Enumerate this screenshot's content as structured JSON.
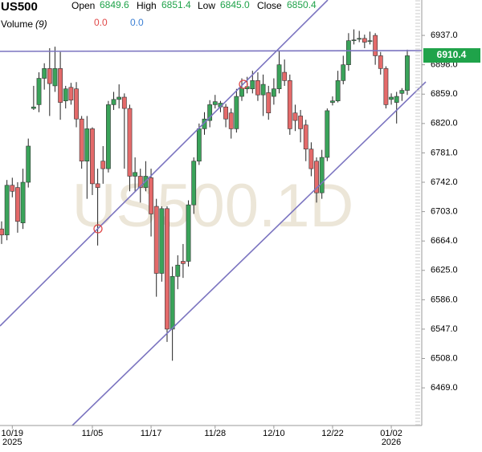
{
  "header": {
    "symbol": "US500",
    "open_label": "Open",
    "open": "6849.6",
    "high_label": "High",
    "high": "6851.4",
    "low_label": "Low",
    "low": "6845.0",
    "close_label": "Close",
    "close": "6850.4",
    "volume_label": "Volume",
    "volume_period": "(9)",
    "volume_a": "0.0",
    "volume_b": "0.0"
  },
  "chart_data": {
    "type": "candlestick",
    "watermark": "US500.1D",
    "up_color": "#3aa35a",
    "down_color": "#e46a6a",
    "categories": [
      null,
      null,
      "10/19",
      null,
      null,
      null,
      null,
      null,
      null,
      null,
      null,
      null,
      null,
      null,
      null,
      null,
      null,
      "11/05",
      null,
      null,
      null,
      null,
      null,
      null,
      null,
      null,
      null,
      null,
      "11/17",
      null,
      null,
      null,
      null,
      null,
      null,
      null,
      null,
      null,
      null,
      null,
      "11/28",
      null,
      null,
      null,
      null,
      null,
      null,
      null,
      null,
      null,
      null,
      "12/10",
      null,
      null,
      null,
      null,
      null,
      null,
      null,
      null,
      null,
      null,
      "12/22",
      null,
      null,
      null,
      null,
      null,
      null,
      null,
      null,
      null,
      null,
      "01/02",
      null,
      null,
      null
    ],
    "years": [
      null,
      null,
      "2025",
      null,
      null,
      null,
      null,
      null,
      null,
      null,
      null,
      null,
      null,
      null,
      null,
      null,
      null,
      null,
      null,
      null,
      null,
      null,
      null,
      null,
      null,
      null,
      null,
      null,
      null,
      null,
      null,
      null,
      null,
      null,
      null,
      null,
      null,
      null,
      null,
      null,
      null,
      null,
      null,
      null,
      null,
      null,
      null,
      null,
      null,
      null,
      null,
      null,
      null,
      null,
      null,
      null,
      null,
      null,
      null,
      null,
      null,
      null,
      null,
      null,
      null,
      null,
      null,
      null,
      null,
      null,
      null,
      null,
      null,
      "2026",
      null,
      null,
      null
    ],
    "open": [
      6680,
      6672,
      6738,
      6735,
      6688,
      6742,
      6840,
      6845,
      6880,
      6893,
      6870,
      6893,
      6850,
      6868,
      6866,
      6826,
      6770,
      6813,
      6740,
      6770,
      6760,
      6845,
      6852,
      6855,
      6840,
      6750,
      6750,
      6735,
      6748,
      6710,
      6621,
      6707,
      6547,
      6617,
      6637,
      6637,
      6712,
      6770,
      6813,
      6824,
      6845,
      6842,
      6842,
      6834,
      6813,
      6856,
      6866,
      6866,
      6877,
      6858,
      6861,
      6856,
      6866,
      6888,
      6877,
      6834,
      6830,
      6818,
      6786,
      6770,
      6728,
      6775,
      6848,
      6850,
      6877,
      6898,
      6930,
      6932,
      6933,
      6929,
      6937,
      6910,
      6893,
      6852,
      6848,
      6860,
      6864
    ],
    "high": [
      6690,
      6745,
      6748,
      6742,
      6760,
      6800,
      6870,
      6888,
      6900,
      6920,
      6922,
      6915,
      6870,
      6874,
      6875,
      6830,
      6830,
      6815,
      6760,
      6790,
      6850,
      6862,
      6872,
      6860,
      6845,
      6775,
      6760,
      6770,
      6760,
      6720,
      6710,
      6710,
      6630,
      6645,
      6660,
      6718,
      6775,
      6820,
      6835,
      6851,
      6858,
      6850,
      6846,
      6840,
      6866,
      6880,
      6882,
      6890,
      6888,
      6885,
      6870,
      6880,
      6916,
      6905,
      6885,
      6845,
      6838,
      6825,
      6795,
      6775,
      6785,
      6840,
      6856,
      6890,
      6910,
      6940,
      6945,
      6943,
      6938,
      6942,
      6940,
      6915,
      6896,
      6860,
      6862,
      6867,
      6918
    ],
    "low": [
      6660,
      6665,
      6722,
      6675,
      6680,
      6735,
      6838,
      6835,
      6865,
      6830,
      6862,
      6825,
      6840,
      6845,
      6815,
      6760,
      6720,
      6725,
      6658,
      6740,
      6755,
      6838,
      6840,
      6760,
      6730,
      6730,
      6715,
      6730,
      6670,
      6590,
      6610,
      6530,
      6505,
      6600,
      6615,
      6630,
      6700,
      6765,
      6805,
      6815,
      6840,
      6835,
      6815,
      6800,
      6808,
      6850,
      6860,
      6860,
      6850,
      6830,
      6825,
      6845,
      6860,
      6870,
      6805,
      6810,
      6795,
      6770,
      6750,
      6715,
      6720,
      6770,
      6844,
      6848,
      6872,
      6890,
      6925,
      6928,
      6920,
      6925,
      6898,
      6885,
      6840,
      6845,
      6820,
      6850,
      6858
    ],
    "close": [
      6672,
      6738,
      6730,
      6690,
      6742,
      6790,
      6842,
      6880,
      6893,
      6873,
      6893,
      6848,
      6866,
      6851,
      6826,
      6770,
      6813,
      6740,
      6735,
      6760,
      6845,
      6852,
      6855,
      6840,
      6750,
      6755,
      6735,
      6750,
      6700,
      6621,
      6707,
      6547,
      6617,
      6632,
      6634,
      6712,
      6770,
      6813,
      6826,
      6845,
      6849,
      6847,
      6826,
      6813,
      6856,
      6867,
      6869,
      6877,
      6858,
      6872,
      6834,
      6866,
      6898,
      6877,
      6813,
      6824,
      6813,
      6786,
      6760,
      6728,
      6775,
      6837,
      6850,
      6877,
      6898,
      6930,
      6931,
      6933,
      6928,
      6930,
      6910,
      6893,
      6845,
      6855,
      6856,
      6864,
      6910
    ],
    "ylim": [
      6419,
      6984
    ],
    "yticks": [
      {
        "value": 6469,
        "label": "6469.0"
      },
      {
        "value": 6508,
        "label": "6508.0"
      },
      {
        "value": 6547,
        "label": "6547.0"
      },
      {
        "value": 6586,
        "label": "6586.0"
      },
      {
        "value": 6625,
        "label": "6625.0"
      },
      {
        "value": 6664,
        "label": "6664.0"
      },
      {
        "value": 6703,
        "label": "6703.0"
      },
      {
        "value": 6742,
        "label": "6742.0"
      },
      {
        "value": 6781,
        "label": "6781.0"
      },
      {
        "value": 6820,
        "label": "6820.0"
      },
      {
        "value": 6859,
        "label": "6859.0"
      },
      {
        "value": 6898,
        "label": "6898.0"
      },
      {
        "value": 6937,
        "label": "6937.0"
      }
    ],
    "last_price": 6910.4,
    "last_price_color": "#1fa34a"
  }
}
